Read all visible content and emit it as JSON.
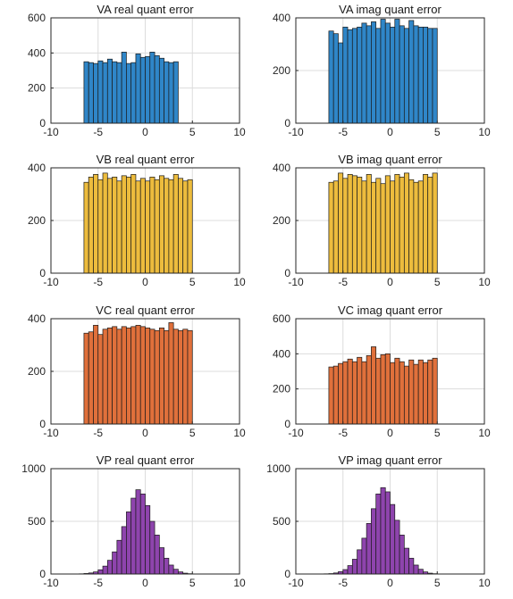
{
  "chart_data": [
    {
      "type": "bar",
      "title": "VA real quant error",
      "ylim": [
        0,
        600
      ],
      "xlim": [
        -10,
        10
      ],
      "yticks": [
        0,
        200,
        400,
        600
      ],
      "xticks": [
        -10,
        -5,
        0,
        5,
        10
      ],
      "grid": "on",
      "color": "#2F86C8",
      "bin_start": -6.5,
      "bin_width": 0.5,
      "values": [
        350,
        345,
        340,
        355,
        345,
        365,
        350,
        345,
        405,
        340,
        345,
        395,
        375,
        380,
        405,
        385,
        370,
        350,
        345,
        350
      ]
    },
    {
      "type": "bar",
      "title": "VA imag quant error",
      "ylim": [
        0,
        400
      ],
      "xlim": [
        -10,
        10
      ],
      "yticks": [
        0,
        200,
        400
      ],
      "xticks": [
        -10,
        -5,
        0,
        5,
        10
      ],
      "grid": "on",
      "color": "#2F86C8",
      "bin_start": -6.5,
      "bin_width": 0.5,
      "values": [
        350,
        340,
        305,
        365,
        355,
        360,
        365,
        380,
        370,
        385,
        360,
        395,
        380,
        365,
        395,
        370,
        360,
        390,
        370,
        365,
        365,
        360,
        360
      ]
    },
    {
      "type": "bar",
      "title": "VB real quant error",
      "ylim": [
        0,
        400
      ],
      "xlim": [
        -10,
        10
      ],
      "yticks": [
        0,
        200,
        400
      ],
      "xticks": [
        -10,
        -5,
        0,
        5,
        10
      ],
      "grid": "on",
      "color": "#EDBC3D",
      "bin_start": -6.5,
      "bin_width": 0.5,
      "values": [
        345,
        365,
        375,
        355,
        380,
        360,
        365,
        350,
        370,
        365,
        375,
        350,
        360,
        350,
        365,
        355,
        370,
        360,
        355,
        375,
        360,
        350,
        355
      ]
    },
    {
      "type": "bar",
      "title": "VB imag quant error",
      "ylim": [
        0,
        400
      ],
      "xlim": [
        -10,
        10
      ],
      "yticks": [
        0,
        200,
        400
      ],
      "xticks": [
        -10,
        -5,
        0,
        5,
        10
      ],
      "grid": "on",
      "color": "#EDBC3D",
      "bin_start": -6.5,
      "bin_width": 0.5,
      "values": [
        345,
        350,
        380,
        360,
        375,
        370,
        365,
        350,
        375,
        345,
        360,
        340,
        370,
        350,
        375,
        365,
        380,
        355,
        345,
        350,
        375,
        365,
        380
      ]
    },
    {
      "type": "bar",
      "title": "VC real quant error",
      "ylim": [
        0,
        400
      ],
      "xlim": [
        -10,
        10
      ],
      "yticks": [
        0,
        200,
        400
      ],
      "xticks": [
        -10,
        -5,
        0,
        5,
        10
      ],
      "grid": "on",
      "color": "#E0703B",
      "bin_start": -6.5,
      "bin_width": 0.5,
      "values": [
        345,
        350,
        375,
        340,
        360,
        365,
        370,
        360,
        370,
        365,
        370,
        375,
        370,
        365,
        360,
        355,
        365,
        355,
        385,
        360,
        355,
        360,
        355
      ]
    },
    {
      "type": "bar",
      "title": "VC imag quant error",
      "ylim": [
        0,
        600
      ],
      "xlim": [
        -10,
        10
      ],
      "yticks": [
        0,
        200,
        400,
        600
      ],
      "xticks": [
        -10,
        -5,
        0,
        5,
        10
      ],
      "grid": "on",
      "color": "#E0703B",
      "bin_start": -6.5,
      "bin_width": 0.5,
      "values": [
        325,
        330,
        345,
        355,
        370,
        355,
        380,
        355,
        390,
        440,
        375,
        395,
        400,
        350,
        375,
        355,
        330,
        365,
        340,
        365,
        350,
        365,
        375
      ]
    },
    {
      "type": "bar",
      "title": "VP real quant error",
      "ylim": [
        0,
        1000
      ],
      "xlim": [
        -10,
        10
      ],
      "yticks": [
        0,
        500,
        1000
      ],
      "xticks": [
        -10,
        -5,
        0,
        5,
        10
      ],
      "grid": "on",
      "color": "#8E44AD",
      "bin_start": -7,
      "bin_width": 0.5,
      "values": [
        2,
        5,
        10,
        20,
        40,
        75,
        130,
        210,
        320,
        450,
        590,
        720,
        800,
        760,
        650,
        500,
        370,
        250,
        150,
        85,
        45,
        20,
        8,
        3
      ]
    },
    {
      "type": "bar",
      "title": "VP imag quant error",
      "ylim": [
        0,
        1000
      ],
      "xlim": [
        -10,
        10
      ],
      "yticks": [
        0,
        500,
        1000
      ],
      "xticks": [
        -10,
        -5,
        0,
        5,
        10
      ],
      "grid": "on",
      "color": "#8E44AD",
      "bin_start": -7,
      "bin_width": 0.5,
      "values": [
        2,
        4,
        10,
        22,
        42,
        80,
        140,
        230,
        340,
        480,
        620,
        760,
        820,
        780,
        660,
        510,
        370,
        245,
        150,
        85,
        45,
        20,
        8,
        3
      ]
    }
  ]
}
